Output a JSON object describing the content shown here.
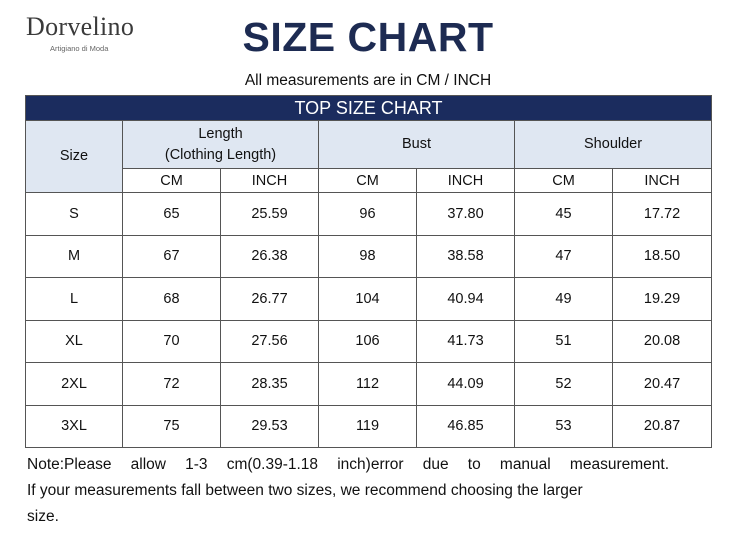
{
  "brand": {
    "name": "Dorvelino",
    "tagline": "Artigiano di Moda"
  },
  "title": "SIZE CHART",
  "units_note": "All measurements are in CM / INCH",
  "table": {
    "banner": "TOP SIZE CHART",
    "size_header": "Size",
    "groups": [
      {
        "label_line1": "Length",
        "label_line2": "(Clothing Length)"
      },
      {
        "label_line1": "Bust",
        "label_line2": ""
      },
      {
        "label_line1": "Shoulder",
        "label_line2": ""
      }
    ],
    "units": [
      "CM",
      "INCH",
      "CM",
      "INCH",
      "CM",
      "INCH"
    ],
    "rows": [
      [
        "S",
        "65",
        "25.59",
        "96",
        "37.80",
        "45",
        "17.72"
      ],
      [
        "M",
        "67",
        "26.38",
        "98",
        "38.58",
        "47",
        "18.50"
      ],
      [
        "L",
        "68",
        "26.77",
        "104",
        "40.94",
        "49",
        "19.29"
      ],
      [
        "XL",
        "70",
        "27.56",
        "106",
        "41.73",
        "51",
        "20.08"
      ],
      [
        "2XL",
        "72",
        "28.35",
        "112",
        "44.09",
        "52",
        "20.47"
      ],
      [
        "3XL",
        "75",
        "29.53",
        "119",
        "46.85",
        "53",
        "20.87"
      ]
    ]
  },
  "footer": {
    "note": "Note:Please allow 1-3 cm(0.39-1.18 inch)error due to manual measurement.",
    "advice_line1": "If your measurements fall between two sizes, we recommend choosing the larger",
    "advice_line2": "size."
  },
  "colors": {
    "title": "#1d2b52",
    "banner": "#1b2c5e",
    "header_fill": "#dfe7f2"
  }
}
